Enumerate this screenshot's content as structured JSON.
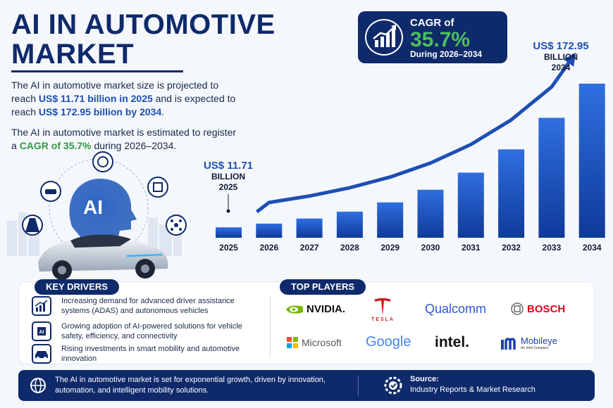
{
  "title": "AI IN AUTOMOTIVE MARKET",
  "intro": {
    "p1_a": "The AI in automotive market size is projected to reach ",
    "p1_b": "US$ 11.71 billion in 2025",
    "p1_c": " and is expected to reach ",
    "p1_d": "US$ 172.95 billion by 2034",
    "p1_e": ".",
    "p2_a": "The AI in automotive market is estimated to register a ",
    "p2_b": "CAGR of 35.7%",
    "p2_c": " during 2026–2034."
  },
  "cagr": {
    "label": "CAGR of",
    "value": "35.7%",
    "period": "During 2026–2034"
  },
  "illustration": {
    "ai_label": "AI"
  },
  "chart_data": {
    "type": "bar",
    "categories": [
      "2025",
      "2026",
      "2027",
      "2028",
      "2029",
      "2030",
      "2031",
      "2032",
      "2033",
      "2034"
    ],
    "values": [
      11.71,
      15.9,
      21.6,
      29.3,
      39.7,
      53.9,
      73.1,
      99.2,
      134.6,
      172.95
    ],
    "start_label": {
      "value": "US$ 11.71",
      "unit": "BILLION",
      "year": "2025"
    },
    "end_label": {
      "value": "US$ 172.95",
      "unit": "BILLION",
      "year": "2034"
    },
    "ylim": [
      0,
      180
    ],
    "grid": false,
    "colors": {
      "bar_top": "#2f6fe0",
      "bar_bottom": "#0f3a9a",
      "arrow": "#1d4fb3"
    }
  },
  "drivers": {
    "heading": "KEY DRIVERS",
    "items": [
      {
        "text": "Increasing demand for advanced driver assistance systems (ADAS) and autonomous vehicles",
        "icon": "growth-chart-icon"
      },
      {
        "text": "Growing adoption of AI-powered solutions for vehicle safety, efficiency, and connectivity",
        "icon": "ai-chip-icon"
      },
      {
        "text": "Rising investments in smart mobility and automotive innovation",
        "icon": "car-icon"
      }
    ]
  },
  "players": {
    "heading": "TOP PLAYERS",
    "items": [
      "NVIDIA.",
      "TESLA",
      "Qualcomm",
      "BOSCH",
      "Microsoft",
      "Google",
      "intel.",
      "Mobileye"
    ],
    "mobileye_sub": "An Intel Company"
  },
  "footer": {
    "text": "The AI in automotive market is set for exponential growth, driven by innovation, automation, and intelligent mobility solutions.",
    "source_label": "Source:",
    "source_text": "Industry Reports & Market Research"
  }
}
